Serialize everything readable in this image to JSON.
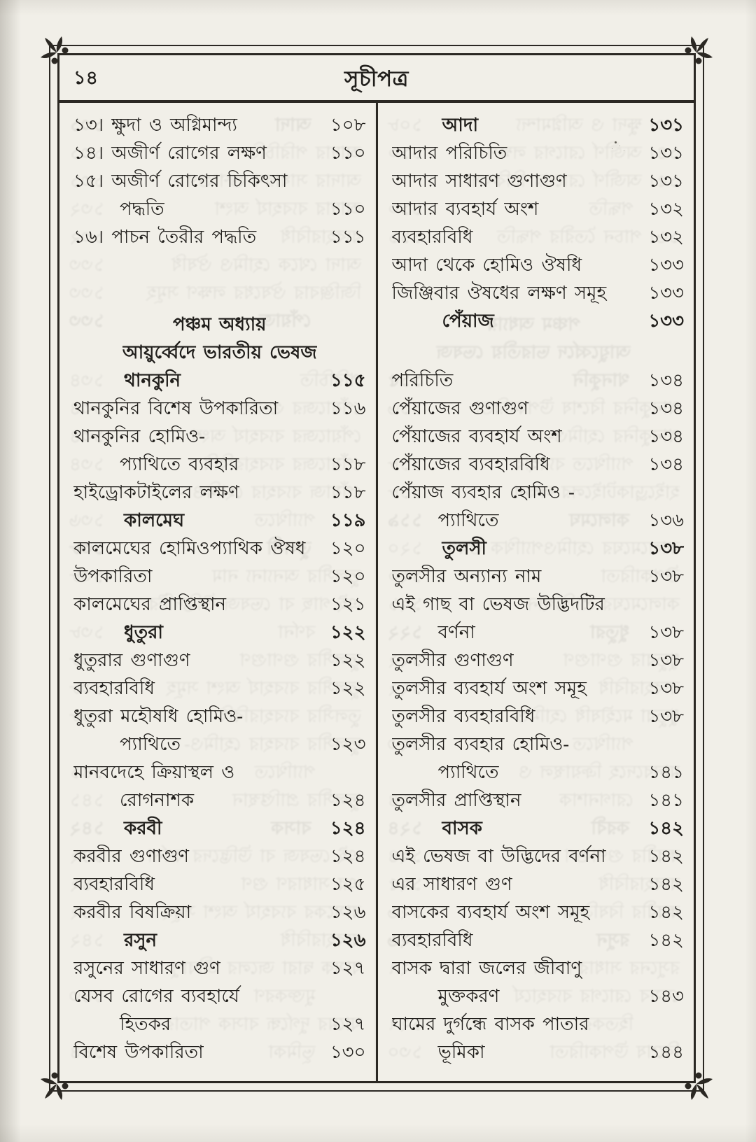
{
  "page": {
    "number": "১৪",
    "title": "সূচীপত্র"
  },
  "columns": {
    "left": [
      {
        "type": "entry",
        "text": "১৩। ক্ষুদা ও অগ্নিমান্দ্য",
        "page": "১০৮"
      },
      {
        "type": "entry",
        "text": "১৪। অজীর্ণ রোগের লক্ষণ",
        "page": "১১০"
      },
      {
        "type": "wrap",
        "text": "১৫। অজীর্ণ রোগের চিকিৎসা"
      },
      {
        "type": "cont",
        "text": "পদ্ধতি",
        "page": "১১০"
      },
      {
        "type": "entry",
        "text": "১৬। পাচন তৈরীর পদ্ধতি",
        "page": "১১১"
      },
      {
        "type": "gap",
        "h": 85
      },
      {
        "type": "center",
        "text": "পঞ্চম অধ্যায়"
      },
      {
        "type": "center",
        "text": "আয়ুর্ব্বেদে ভারতীয় ভেষজ"
      },
      {
        "type": "head",
        "text": "থানকুনি",
        "page": "১১৫"
      },
      {
        "type": "entry",
        "text": "থানকুনির বিশেষ উপকারিতা",
        "page": "১১৬"
      },
      {
        "type": "wrap",
        "text": "থানকুনির হোমিও-"
      },
      {
        "type": "cont",
        "text": "প্যাথিতে ব্যবহার",
        "page": "১১৮"
      },
      {
        "type": "entry",
        "text": "হাইড্রোকটাইলের লক্ষণ",
        "page": "১১৮"
      },
      {
        "type": "head",
        "text": "কালমেঘ",
        "page": "১১৯"
      },
      {
        "type": "entry",
        "text": "কালমেঘের হোমিওপ্যাথিক ঔষধ",
        "page": "১২০"
      },
      {
        "type": "entry",
        "text": "উপকারিতা",
        "page": "১২০"
      },
      {
        "type": "entry",
        "text": "কালমেঘের প্রাপ্তিস্থান",
        "page": "১২১"
      },
      {
        "type": "head",
        "text": "ধুতুরা",
        "page": "১২২"
      },
      {
        "type": "entry",
        "text": "ধুতুরার গুণাগুণ",
        "page": "১২২"
      },
      {
        "type": "entry",
        "text": "ব্যবহারবিধি",
        "page": "১২২"
      },
      {
        "type": "wrap",
        "text": "ধুতুরা মহৌষধি হোমিও-"
      },
      {
        "type": "cont",
        "text": "প্যাথিতে",
        "page": "১২৩"
      },
      {
        "type": "wrap",
        "text": "মানবদেহে ক্রিয়াস্থল ও"
      },
      {
        "type": "cont",
        "text": "রোগনাশক",
        "page": "১২৪"
      },
      {
        "type": "head",
        "text": "করবী",
        "page": "১২৪"
      },
      {
        "type": "entry",
        "text": "করবীর গুণাগুণ",
        "page": "১২৪"
      },
      {
        "type": "entry",
        "text": "ব্যবহারবিধি",
        "page": "১২৫"
      },
      {
        "type": "entry",
        "text": "করবীর বিষক্রিয়া",
        "page": "১২৬"
      },
      {
        "type": "head",
        "text": "রসুন",
        "page": "১২৬"
      },
      {
        "type": "entry",
        "text": "রসুনের সাধারণ গুণ",
        "page": "১২৭"
      },
      {
        "type": "wrap",
        "text": "যেসব রোগের ব্যবহার্যে"
      },
      {
        "type": "cont",
        "text": "হিতকর",
        "page": "১২৭"
      },
      {
        "type": "entry",
        "text": "বিশেষ উপকারিতা",
        "page": "১৩০"
      }
    ],
    "right": [
      {
        "type": "head",
        "text": "আদা",
        "page": "১৩১"
      },
      {
        "type": "entry",
        "text": "আদার পরিচিতি",
        "page": "১৩১"
      },
      {
        "type": "entry",
        "text": "আদার সাধারণ গুণাগুণ",
        "page": "১৩১"
      },
      {
        "type": "entry",
        "text": "আদার ব্যবহার্য অংশ",
        "page": "১৩২"
      },
      {
        "type": "entry",
        "text": "ব্যবহারবিধি",
        "page": "১৩২"
      },
      {
        "type": "entry",
        "text": "আদা থেকে হোমিও ঔষধি",
        "page": "১৩৩"
      },
      {
        "type": "entry",
        "text": "জিঞ্জিবার ঔষধের লক্ষণ সমূহ",
        "page": "১৩৩"
      },
      {
        "type": "head",
        "text": "পেঁয়াজ",
        "page": "১৩৩"
      },
      {
        "type": "gap",
        "h": 45
      },
      {
        "type": "entry",
        "text": "পরিচিতি",
        "page": "১৩৪"
      },
      {
        "type": "entry",
        "text": "পেঁয়াজের গুণাগুণ",
        "page": "১৩৪"
      },
      {
        "type": "entry",
        "text": "পেঁয়াজের ব্যবহার্য অংশ",
        "page": "১৩৪"
      },
      {
        "type": "entry",
        "text": "পেঁয়াজের ব্যবহারবিধি",
        "page": "১৩৪"
      },
      {
        "type": "wrap",
        "text": "পেঁয়াজ ব্যবহার হোমিও -"
      },
      {
        "type": "cont",
        "text": "প্যাথিতে",
        "page": "১৩৬"
      },
      {
        "type": "head",
        "text": "তুলসী",
        "page": "১৩৮"
      },
      {
        "type": "entry",
        "text": "তুলসীর অন্যান্য নাম",
        "page": "১৩৮"
      },
      {
        "type": "wrap",
        "text": "এই গাছ বা ভেষজ উদ্ভিদটির"
      },
      {
        "type": "cont",
        "text": "বর্ণনা",
        "page": "১৩৮"
      },
      {
        "type": "entry",
        "text": "তুলসীর গুণাগুণ",
        "page": "১৩৮"
      },
      {
        "type": "entry",
        "text": "তুলসীর ব্যবহার্য অংশ সমূহ",
        "page": "১৩৮"
      },
      {
        "type": "entry",
        "text": "তুলসীর ব্যবহারবিধি",
        "page": "১৩৮"
      },
      {
        "type": "wrap",
        "text": "তুলসীর ব্যবহার হোমিও-"
      },
      {
        "type": "cont",
        "text": "প্যাথিতে",
        "page": "১৪১"
      },
      {
        "type": "entry",
        "text": "তুলসীর প্রাপ্তিস্থান",
        "page": "১৪১"
      },
      {
        "type": "head",
        "text": "বাসক",
        "page": "১৪২"
      },
      {
        "type": "entry",
        "text": "এই ভেষজ বা উদ্ভিদের বর্ণনা",
        "page": "১৪২"
      },
      {
        "type": "entry",
        "text": "এর সাধারণ গুণ",
        "page": "১৪২"
      },
      {
        "type": "entry",
        "text": "বাসকের ব্যবহার্য অংশ সমূহ",
        "page": "১৪২"
      },
      {
        "type": "entry",
        "text": "ব্যবহারবিধি",
        "page": "১৪২"
      },
      {
        "type": "wrap",
        "text": "বাসক দ্বারা জলের জীবাণু"
      },
      {
        "type": "cont",
        "text": "মুক্তকরণ",
        "page": "১৪৩"
      },
      {
        "type": "wrap",
        "text": "ঘামের দুর্গন্ধে বাসক পাতার"
      },
      {
        "type": "cont",
        "text": "ভূমিকা",
        "page": "১৪৪"
      }
    ]
  }
}
